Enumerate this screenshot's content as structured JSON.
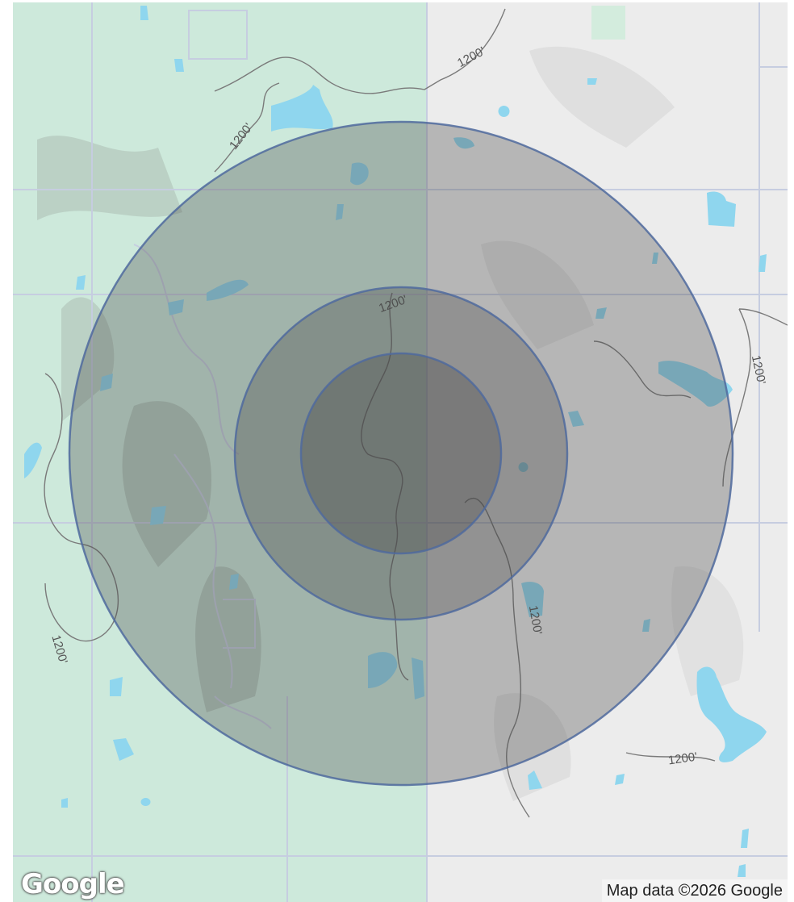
{
  "map": {
    "attribution": "Map data ©2026 Google",
    "logo": "Google",
    "contour_labels": [
      "1200'",
      "1200'",
      "1200'",
      "1200'",
      "1200'",
      "1200'",
      "1200'"
    ],
    "colors": {
      "land": "#ececec",
      "park": "#cbe9da",
      "water": "#8fd6ee",
      "road": "#c9cfe0",
      "contour": "#777777",
      "ring_stroke": "#4f6a9e",
      "ring_fill": "#4b4b4b"
    },
    "rings": [
      {
        "name": "outer-radius-ring"
      },
      {
        "name": "middle-radius-ring"
      },
      {
        "name": "inner-radius-ring"
      }
    ]
  }
}
